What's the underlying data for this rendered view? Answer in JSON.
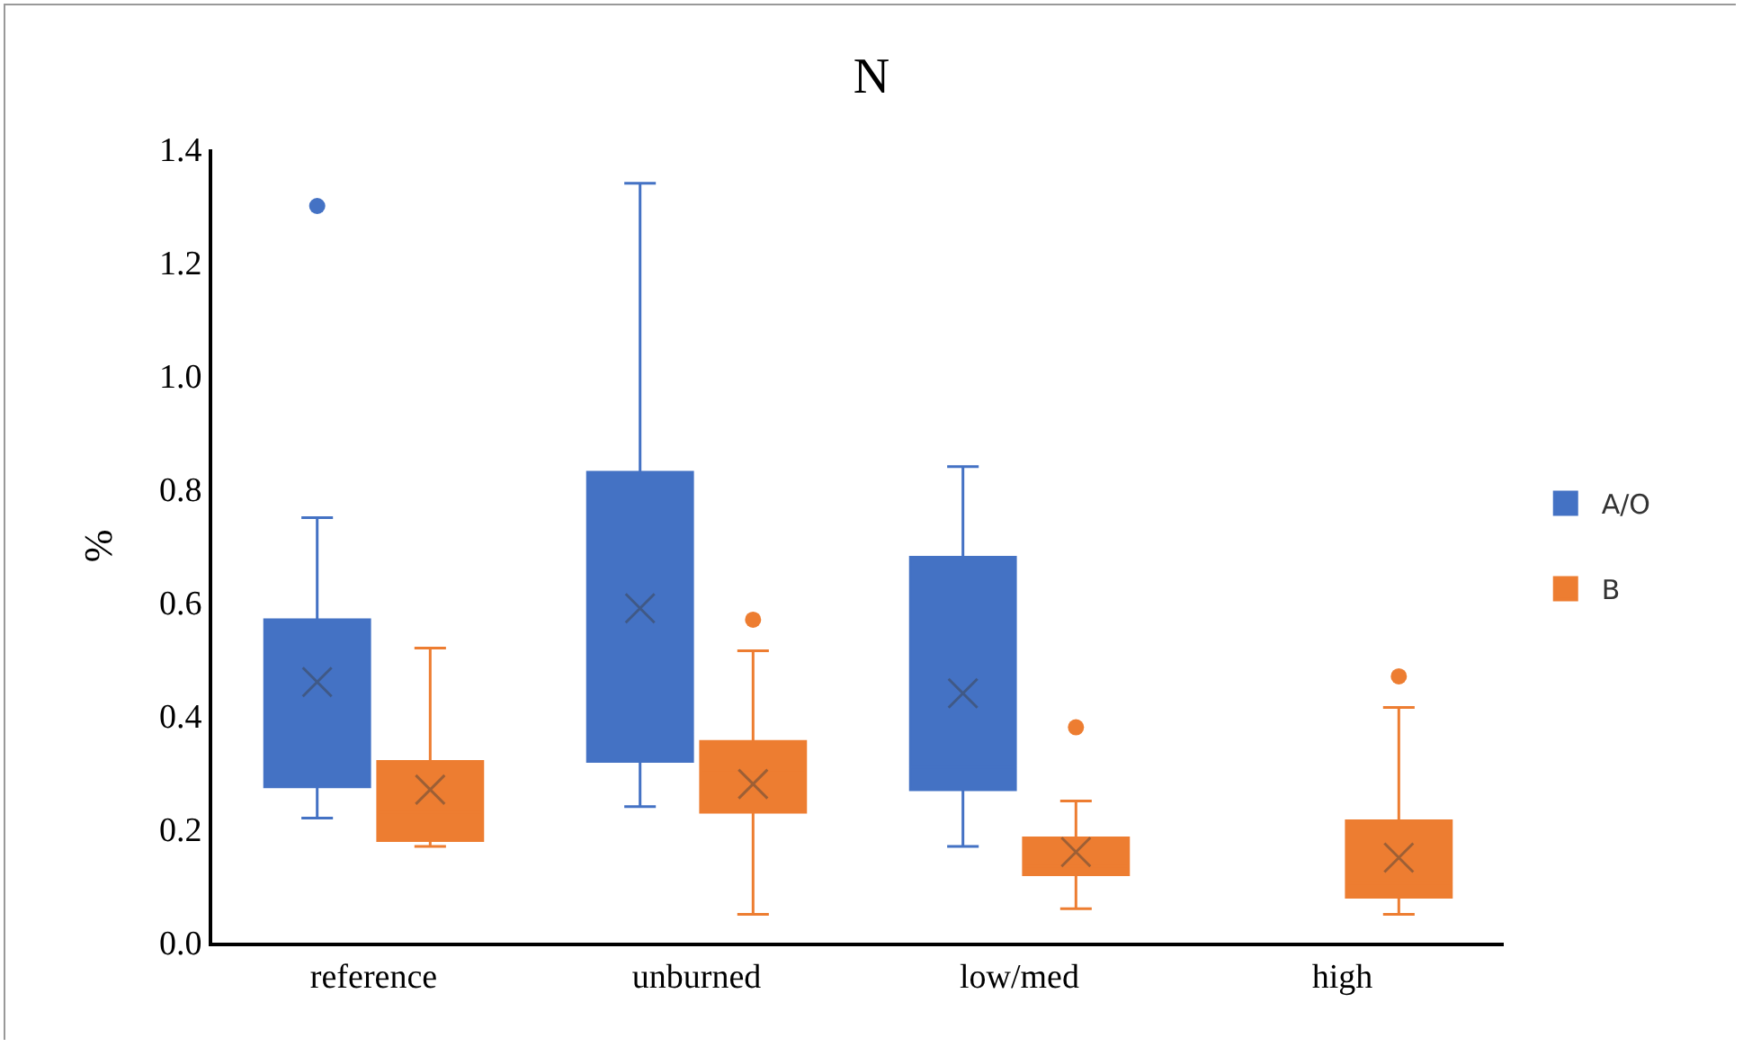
{
  "chart_data": {
    "type": "box",
    "title": "N",
    "ylabel": "%",
    "categories": [
      "reference",
      "unburned",
      "low/med",
      "high"
    ],
    "ylim": [
      0,
      1.4
    ],
    "yticks": [
      {
        "value": 0,
        "label": "0.0"
      },
      {
        "value": 0.2,
        "label": "0.2"
      },
      {
        "value": 0.4,
        "label": "0.4"
      },
      {
        "value": 0.6,
        "label": "0.6"
      },
      {
        "value": 0.8,
        "label": "0.8"
      },
      {
        "value": 1.0,
        "label": "1.0"
      },
      {
        "value": 1.2,
        "label": "1.2"
      },
      {
        "value": 1.4,
        "label": "1.4"
      }
    ],
    "grid": false,
    "legend": "right",
    "series": [
      {
        "name": "A/O",
        "color": "#4472c4",
        "boxes": [
          {
            "low": 0.22,
            "q1": 0.275,
            "median": 0.37,
            "q3": 0.57,
            "high": 0.75,
            "mean": 0.46,
            "outliers": [
              1.3
            ]
          },
          {
            "low": 0.24,
            "q1": 0.32,
            "median": 0.37,
            "q3": 0.83,
            "high": 1.34,
            "mean": 0.59
          },
          {
            "low": 0.17,
            "q1": 0.27,
            "median": 0.31,
            "q3": 0.68,
            "high": 0.84,
            "mean": 0.44
          },
          null
        ]
      },
      {
        "name": "B",
        "color": "#ed7d31",
        "boxes": [
          {
            "low": 0.17,
            "q1": 0.18,
            "median": 0.23,
            "q3": 0.32,
            "high": 0.52,
            "mean": 0.27
          },
          {
            "low": 0.05,
            "q1": 0.23,
            "median": 0.3,
            "q3": 0.355,
            "high": 0.515,
            "mean": 0.28,
            "outliers": [
              0.57
            ]
          },
          {
            "low": 0.06,
            "q1": 0.12,
            "median": 0.135,
            "q3": 0.185,
            "high": 0.25,
            "mean": 0.16,
            "outliers": [
              0.38
            ]
          },
          {
            "low": 0.05,
            "q1": 0.08,
            "median": 0.105,
            "q3": 0.215,
            "high": 0.415,
            "mean": 0.15,
            "outliers": [
              0.47
            ]
          }
        ]
      }
    ]
  }
}
